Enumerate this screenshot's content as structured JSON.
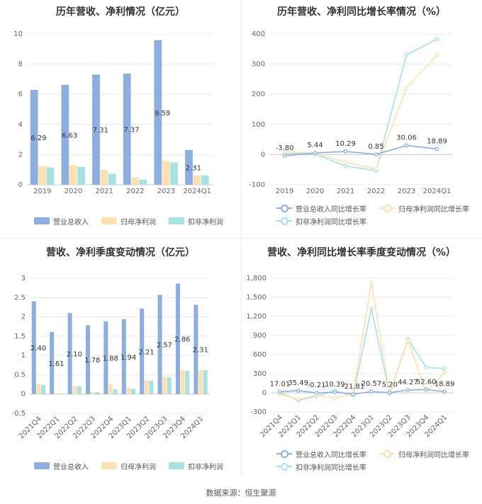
{
  "colors": {
    "revenue": "#8eaedf",
    "parent": "#fde1b0",
    "deducted": "#a7e1e1",
    "grid": "#e8e8e8",
    "axis": "#cccccc"
  },
  "source": "数据来源：恒生聚源",
  "chart_data": [
    {
      "id": "c1",
      "type": "bar",
      "title": "历年营收、净利情况（亿元）",
      "categories": [
        "2019",
        "2020",
        "2021",
        "2022",
        "2023",
        "2024Q1"
      ],
      "ylim": [
        0,
        10
      ],
      "yticks": [
        "0",
        "2",
        "4",
        "6",
        "8",
        "10"
      ],
      "series": [
        {
          "name": "营业总收入",
          "values": [
            6.29,
            6.63,
            7.31,
            7.37,
            9.59,
            2.31
          ],
          "labels": [
            "6.29",
            "6.63",
            "7.31",
            "7.37",
            "9.59",
            "2.31"
          ]
        },
        {
          "name": "归母净利润",
          "values": [
            1.25,
            1.3,
            1.0,
            0.5,
            1.58,
            0.62
          ]
        },
        {
          "name": "扣非净利润",
          "values": [
            1.15,
            1.18,
            0.73,
            0.33,
            1.48,
            0.62
          ]
        }
      ]
    },
    {
      "id": "c2",
      "type": "line",
      "title": "历年营收、净利同比增长率情况（%）",
      "categories": [
        "2019",
        "2020",
        "2021",
        "2022",
        "2023",
        "2024Q1"
      ],
      "ylim": [
        -100,
        400
      ],
      "yticks": [
        "-100",
        "0",
        "100",
        "200",
        "300",
        "400"
      ],
      "series": [
        {
          "name": "营业总收入同比增长率",
          "values": [
            -3.8,
            5.44,
            10.29,
            0.85,
            30.06,
            18.89
          ],
          "labels": [
            "-3.80",
            "5.44",
            "10.29",
            "0.85",
            "30.06",
            "18.89"
          ]
        },
        {
          "name": "归母净利润同比增长率",
          "values": [
            10,
            4,
            -25,
            -48,
            222,
            330
          ]
        },
        {
          "name": "扣非净利润同比增长率",
          "values": [
            4,
            2,
            -38,
            -53,
            331,
            383
          ]
        }
      ]
    },
    {
      "id": "c3",
      "type": "bar",
      "title": "营收、净利季度变动情况（亿元）",
      "categories": [
        "2021Q4",
        "2022Q1",
        "2022Q2",
        "2022Q3",
        "2022Q4",
        "2023Q1",
        "2023Q2",
        "2023Q3",
        "2023Q4",
        "2024Q1"
      ],
      "ylim": [
        -0.5,
        3
      ],
      "yticks": [
        "-0.5",
        "0",
        "0.5",
        "1",
        "1.5",
        "2",
        "2.5",
        "3"
      ],
      "series": [
        {
          "name": "营业总收入",
          "values": [
            2.4,
            1.61,
            2.1,
            1.78,
            1.88,
            1.94,
            2.21,
            2.57,
            2.86,
            2.31
          ],
          "labels": [
            "2.40",
            "1.61",
            "2.10",
            "1.78",
            "1.88",
            "1.94",
            "2.21",
            "2.57",
            "2.86",
            "2.31"
          ]
        },
        {
          "name": "归母净利润",
          "values": [
            0.27,
            0.02,
            0.2,
            0.05,
            0.25,
            0.16,
            0.36,
            0.45,
            0.63,
            0.63
          ]
        },
        {
          "name": "扣非净利润",
          "values": [
            0.24,
            0.0,
            0.2,
            0.05,
            0.12,
            0.13,
            0.35,
            0.43,
            0.6,
            0.62
          ]
        }
      ]
    },
    {
      "id": "c4",
      "type": "line",
      "title": "营收、净利同比增长率季度变动情况（%）",
      "categories": [
        "2021Q4",
        "2022Q1",
        "2022Q2",
        "2022Q3",
        "2022Q4",
        "2023Q1",
        "2023Q2",
        "2023Q3",
        "2023Q4",
        "2024Q1"
      ],
      "ylim": [
        -300,
        1800
      ],
      "yticks": [
        "-300",
        "0",
        "300",
        "600",
        "900",
        "1,200",
        "1,500",
        "1,800"
      ],
      "series": [
        {
          "name": "营业总收入同比增长率",
          "values": [
            17.01,
            35.49,
            -0.21,
            10.39,
            -21.81,
            20.57,
            5.2,
            44.27,
            52.6,
            18.89
          ],
          "labels": [
            "17.01",
            "35.49",
            "-0.21",
            "10.39",
            "-21.81",
            "20.57",
            "5.20",
            "44.27",
            "52.60",
            "18.89"
          ]
        },
        {
          "name": "归母净利润同比增长率",
          "values": [
            -20,
            -100,
            -40,
            -80,
            -15,
            1730,
            -5,
            820,
            15,
            320
          ]
        },
        {
          "name": "扣非净利润同比增长率",
          "values": [
            10,
            -120,
            -50,
            30,
            -40,
            1320,
            -10,
            840,
            400,
            380
          ]
        }
      ]
    }
  ]
}
